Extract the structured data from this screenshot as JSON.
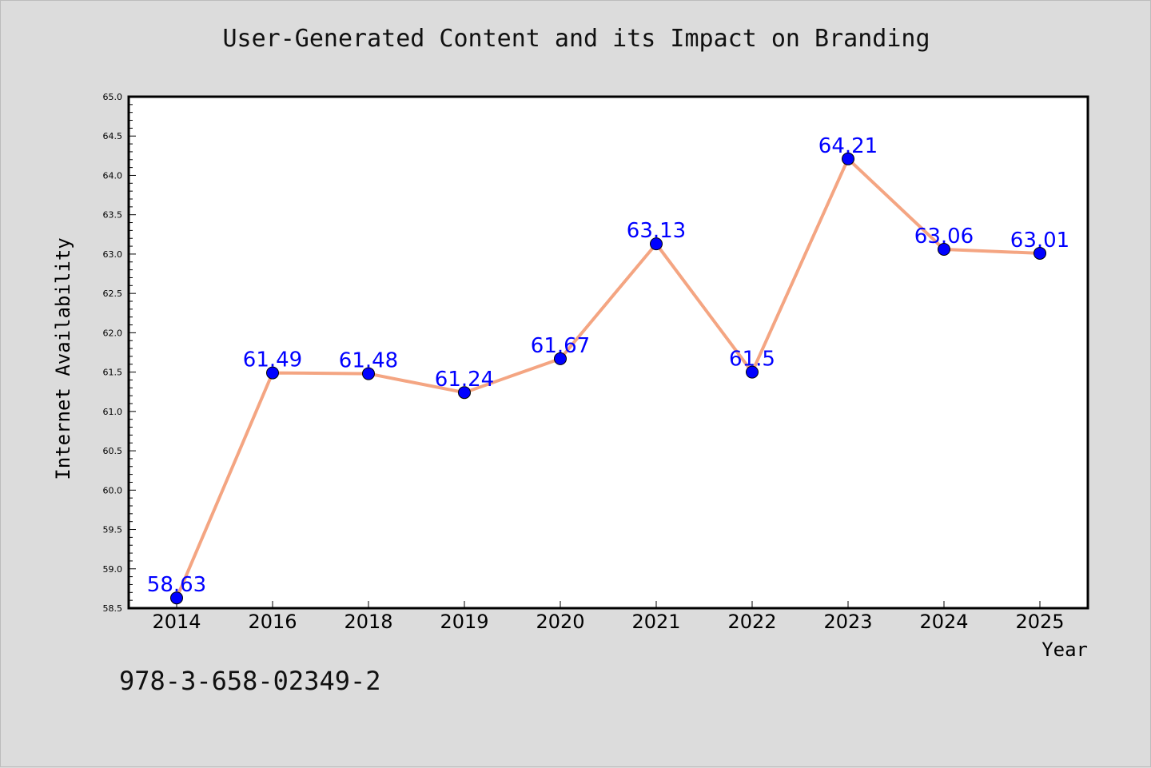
{
  "chart_data": {
    "type": "line",
    "title": "User-Generated Content and its Impact on Branding",
    "xlabel": "Year",
    "ylabel": "Internet Availability",
    "categories": [
      "2014",
      "2016",
      "2018",
      "2019",
      "2020",
      "2021",
      "2022",
      "2023",
      "2024",
      "2025"
    ],
    "series": [
      {
        "values": [
          58.63,
          61.49,
          61.48,
          61.24,
          61.67,
          63.13,
          61.5,
          64.21,
          63.06,
          63.01
        ]
      }
    ],
    "data_labels": [
      "58.63",
      "61.49",
      "61.48",
      "61.24",
      "61.67",
      "63.13",
      "61.5",
      "64.21",
      "63.06",
      "63.01"
    ],
    "ylim": [
      58.5,
      65.0
    ],
    "yticks": [
      "58.5",
      "59.0",
      "59.5",
      "60.0",
      "60.5",
      "61.0",
      "61.5",
      "62.0",
      "62.5",
      "63.0",
      "63.5",
      "64.0",
      "64.5",
      "65.0"
    ],
    "grid": false,
    "line_color": "#f4a582",
    "marker_color": "#0000ff",
    "label_color": "#0000ff"
  },
  "footer": {
    "isbn": "978-3-658-02349-2"
  }
}
